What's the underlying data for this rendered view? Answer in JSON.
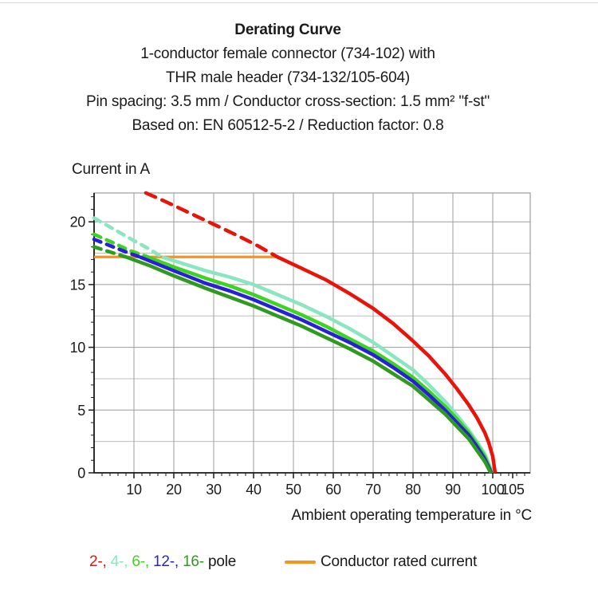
{
  "header": {
    "title": "Derating Curve",
    "subtitle_lines": [
      "1-conductor female connector (734-102) with",
      "THR male header (734-132/105-604)",
      "Pin spacing: 3.5 mm / Conductor cross-section: 1.5 mm² \"f-st\"",
      "Based on: EN 60512-5-2 / Reduction factor: 0.8"
    ]
  },
  "colors": {
    "text": "#1a1a1a",
    "axis": "#1a1a1a",
    "grid_major": "#9c9c9c",
    "grid_minor": "#bdbdbd",
    "frame": "#9c9c9c",
    "rated_orange": "#f7941d",
    "pole2_red": "#e81309",
    "pole4_aqua": "#8ae6c0",
    "pole6_light_green": "#3ed41e",
    "pole12_blue": "#2a1fd8",
    "pole16_dark_green": "#2f9a20"
  },
  "chart_data": {
    "type": "line",
    "title": "Derating Curve",
    "xlabel": "Ambient operating temperature in °C",
    "ylabel": "Current in A",
    "xlim": [
      0,
      109.4
    ],
    "ylim": [
      0,
      22.3
    ],
    "x_ticks": [
      10,
      20,
      30,
      40,
      50,
      60,
      70,
      80,
      90,
      100,
      105
    ],
    "y_ticks": [
      0,
      5,
      10,
      15,
      20
    ],
    "x_minor_tick_step": 2,
    "y_minor_tick_step": 1,
    "x_grid_step": 10,
    "y_grid_step": 2.5,
    "grid": true,
    "legend_position": "bottom",
    "rated_current": {
      "label": "Conductor rated current",
      "value_A": 17.2,
      "x_range": [
        0,
        46
      ],
      "color": "#f7941d",
      "width": 3.2
    },
    "series": [
      {
        "name": "4-pole",
        "legend_label": "4-,",
        "color": "#8ae6c0",
        "width": 4.5,
        "dashed_points": [
          [
            0,
            20.3
          ],
          [
            5,
            19.4
          ],
          [
            10,
            18.5
          ],
          [
            14,
            17.8
          ],
          [
            17,
            17.2
          ]
        ],
        "solid_points": [
          [
            17,
            17.2
          ],
          [
            22,
            16.7
          ],
          [
            28,
            16.1
          ],
          [
            34,
            15.6
          ],
          [
            40,
            15.0
          ],
          [
            46,
            14.2
          ],
          [
            52,
            13.4
          ],
          [
            58,
            12.5
          ],
          [
            64,
            11.5
          ],
          [
            70,
            10.4
          ],
          [
            75,
            9.3
          ],
          [
            80,
            8.2
          ],
          [
            84,
            7.0
          ],
          [
            88,
            5.7
          ],
          [
            91,
            4.6
          ],
          [
            94,
            3.4
          ],
          [
            96,
            2.5
          ],
          [
            98,
            1.5
          ],
          [
            99.3,
            0.5
          ],
          [
            99.8,
            0
          ]
        ]
      },
      {
        "name": "6-pole",
        "legend_label": "6-,",
        "color": "#3ed41e",
        "width": 4.5,
        "dashed_points": [
          [
            0,
            19.0
          ],
          [
            5,
            18.3
          ],
          [
            9,
            17.7
          ],
          [
            13.5,
            17.2
          ]
        ],
        "solid_points": [
          [
            13.5,
            17.2
          ],
          [
            20,
            16.4
          ],
          [
            28,
            15.5
          ],
          [
            34,
            14.9
          ],
          [
            40,
            14.2
          ],
          [
            46,
            13.4
          ],
          [
            52,
            12.6
          ],
          [
            58,
            11.7
          ],
          [
            64,
            10.7
          ],
          [
            70,
            9.7
          ],
          [
            75,
            8.7
          ],
          [
            80,
            7.6
          ],
          [
            84,
            6.5
          ],
          [
            88,
            5.3
          ],
          [
            91,
            4.3
          ],
          [
            94,
            3.2
          ],
          [
            96,
            2.3
          ],
          [
            98,
            1.3
          ],
          [
            99.2,
            0.4
          ],
          [
            99.7,
            0
          ]
        ]
      },
      {
        "name": "12-pole",
        "legend_label": "12-,",
        "color": "#2a1fd8",
        "width": 4.5,
        "dashed_points": [
          [
            0,
            18.6
          ],
          [
            4,
            18.1
          ],
          [
            8,
            17.6
          ],
          [
            11.5,
            17.2
          ]
        ],
        "solid_points": [
          [
            11.5,
            17.2
          ],
          [
            20,
            16.1
          ],
          [
            28,
            15.1
          ],
          [
            34,
            14.5
          ],
          [
            40,
            13.8
          ],
          [
            46,
            13.0
          ],
          [
            52,
            12.2
          ],
          [
            58,
            11.3
          ],
          [
            64,
            10.4
          ],
          [
            70,
            9.4
          ],
          [
            75,
            8.4
          ],
          [
            80,
            7.3
          ],
          [
            84,
            6.2
          ],
          [
            88,
            5.0
          ],
          [
            91,
            4.0
          ],
          [
            94,
            3.0
          ],
          [
            96,
            2.1
          ],
          [
            98,
            1.1
          ],
          [
            99.2,
            0.3
          ],
          [
            99.6,
            0
          ]
        ]
      },
      {
        "name": "16-pole",
        "legend_label": "16-",
        "color": "#2f9a20",
        "width": 4.5,
        "dashed_points": [
          [
            0,
            18.0
          ],
          [
            4,
            17.6
          ],
          [
            8,
            17.2
          ]
        ],
        "solid_points": [
          [
            8,
            17.2
          ],
          [
            14,
            16.5
          ],
          [
            20,
            15.7
          ],
          [
            28,
            14.7
          ],
          [
            34,
            14.0
          ],
          [
            40,
            13.3
          ],
          [
            46,
            12.5
          ],
          [
            52,
            11.7
          ],
          [
            58,
            10.8
          ],
          [
            64,
            9.9
          ],
          [
            70,
            8.9
          ],
          [
            75,
            7.9
          ],
          [
            80,
            6.9
          ],
          [
            84,
            5.8
          ],
          [
            88,
            4.7
          ],
          [
            91,
            3.7
          ],
          [
            94,
            2.7
          ],
          [
            96,
            1.8
          ],
          [
            98,
            0.9
          ],
          [
            99.5,
            0
          ]
        ]
      },
      {
        "name": "2-pole",
        "legend_label": "2-,",
        "color": "#e81309",
        "width": 4.5,
        "dashed_points": [
          [
            13,
            22.3
          ],
          [
            18,
            21.6
          ],
          [
            24,
            20.7
          ],
          [
            30,
            19.8
          ],
          [
            36,
            18.9
          ],
          [
            41,
            18.1
          ],
          [
            46,
            17.2
          ]
        ],
        "solid_points": [
          [
            46,
            17.2
          ],
          [
            52,
            16.3
          ],
          [
            58,
            15.4
          ],
          [
            64,
            14.3
          ],
          [
            70,
            13.1
          ],
          [
            75,
            11.9
          ],
          [
            80,
            10.5
          ],
          [
            84,
            9.3
          ],
          [
            88,
            7.9
          ],
          [
            91,
            6.7
          ],
          [
            94,
            5.4
          ],
          [
            96,
            4.4
          ],
          [
            98,
            3.2
          ],
          [
            99,
            2.4
          ],
          [
            100,
            1.3
          ],
          [
            100.6,
            0
          ]
        ]
      }
    ]
  },
  "legend": {
    "pole_items": [
      {
        "label": "2-,",
        "color": "#e81309"
      },
      {
        "label": "4-,",
        "color": "#8ae6c0"
      },
      {
        "label": "6-,",
        "color": "#3ed41e"
      },
      {
        "label": "12-,",
        "color": "#2a1fd8"
      },
      {
        "label": "16-",
        "color": "#2f9a20"
      }
    ],
    "pole_suffix": " pole",
    "rated_label": "Conductor rated current",
    "rated_color": "#f7941d"
  }
}
